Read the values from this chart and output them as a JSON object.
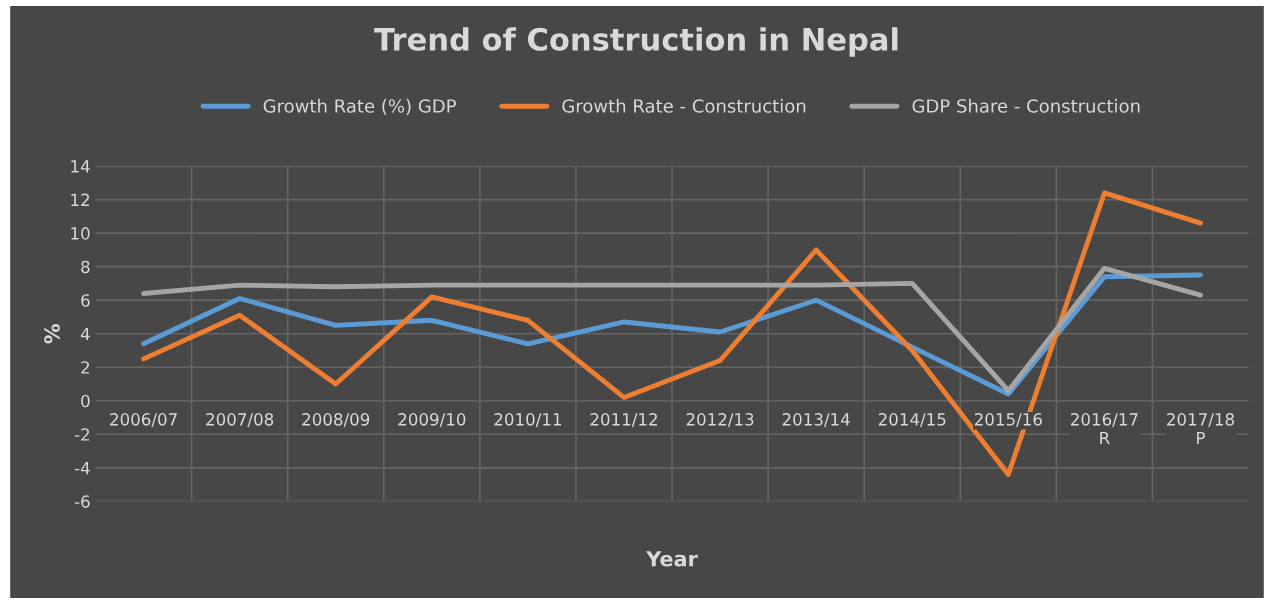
{
  "chart_data": {
    "type": "line",
    "title": "Trend of Construction in Nepal",
    "xlabel": "Year",
    "ylabel": "%",
    "categories": [
      "2006/07",
      "2007/08",
      "2008/09",
      "2009/10",
      "2010/11",
      "2011/12",
      "2012/13",
      "2013/14",
      "2014/15",
      "2015/16",
      "2016/17\nR",
      "2017/18\nP"
    ],
    "series": [
      {
        "name": "Growth Rate (%) GDP",
        "color": "#5b9bd5",
        "values": [
          3.4,
          6.1,
          4.5,
          4.8,
          3.4,
          4.7,
          4.1,
          6.0,
          3.2,
          0.4,
          7.4,
          7.5
        ]
      },
      {
        "name": "Growth Rate - Construction",
        "color": "#ed7d31",
        "values": [
          2.5,
          5.1,
          1.0,
          6.2,
          4.8,
          0.2,
          2.4,
          9.0,
          3.0,
          -4.4,
          12.4,
          10.6
        ]
      },
      {
        "name": "GDP Share - Construction",
        "color": "#a5a5a5",
        "values": [
          6.4,
          6.9,
          6.8,
          6.9,
          6.9,
          6.9,
          6.9,
          6.9,
          7.0,
          0.6,
          7.9,
          6.3
        ]
      }
    ],
    "ylim": [
      -6,
      14
    ],
    "yticks": [
      -6,
      -4,
      -2,
      0,
      2,
      4,
      6,
      8,
      10,
      12,
      14
    ],
    "grid": true,
    "legend": "top",
    "marker": "none",
    "line_style": "solid"
  }
}
